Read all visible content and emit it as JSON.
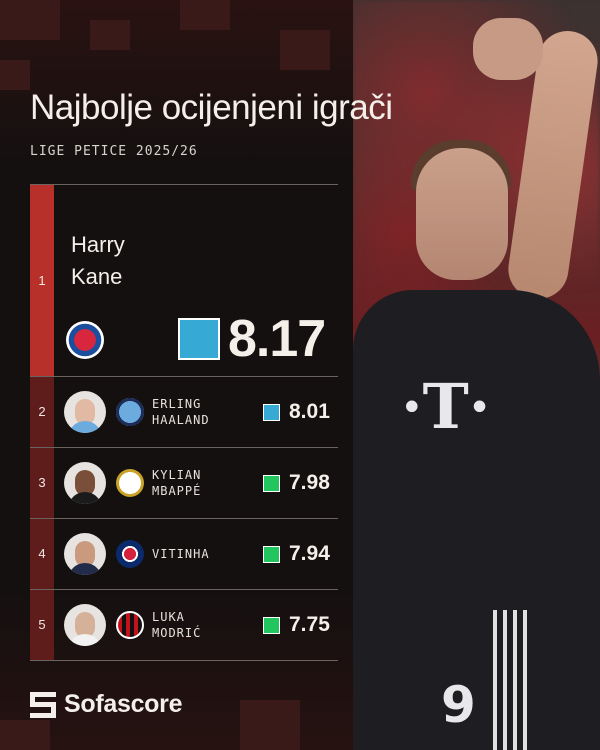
{
  "header": {
    "title": "Najbolje ocijenjeni igrači",
    "subtitle": "LIGE PETICE 2025/26"
  },
  "players": [
    {
      "rank": "1",
      "name_line1": "Harry",
      "name_line2": "Kane",
      "club_icon": "bayern-munich-crest-icon",
      "rating": "8.17",
      "rating_color": "#36a9d4"
    },
    {
      "rank": "2",
      "name_line1": "ERLING",
      "name_line2": "HAALAND",
      "club_icon": "manchester-city-crest-icon",
      "rating": "8.01",
      "rating_color": "#36a9d4"
    },
    {
      "rank": "3",
      "name_line1": "KYLIAN",
      "name_line2": "MBAPPÉ",
      "club_icon": "real-madrid-crest-icon",
      "rating": "7.98",
      "rating_color": "#22c55e"
    },
    {
      "rank": "4",
      "name_line1": "VITINHA",
      "name_line2": "",
      "club_icon": "psg-crest-icon",
      "rating": "7.94",
      "rating_color": "#22c55e"
    },
    {
      "rank": "5",
      "name_line1": "LUKA",
      "name_line2": "MODRIĆ",
      "club_icon": "ac-milan-crest-icon",
      "rating": "7.75",
      "rating_color": "#22c55e"
    }
  ],
  "brand": {
    "name": "Sofascore"
  },
  "colors": {
    "accent_red": "#b73029",
    "dark_red": "#5e1c1b",
    "background": "#141010"
  }
}
